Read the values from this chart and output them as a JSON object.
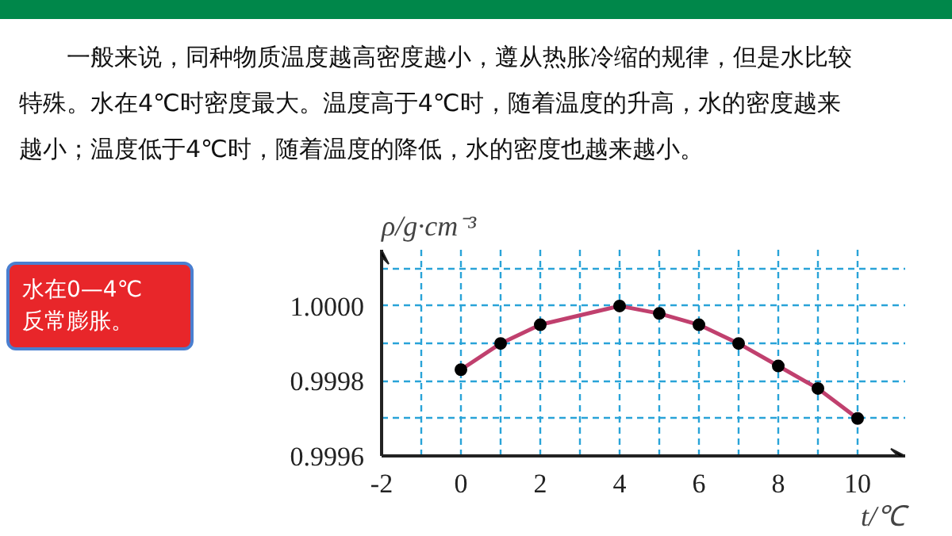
{
  "chart_data": {
    "type": "line",
    "title": "一般来说，同种物质温度越高密度越小，遵从热胀冷缩的规律，但是水比较特殊。水在4℃时密度最大。温度高于4℃时，随着温度的升高，水的密度越来越小；温度低于4℃时，随着温度的降低，水的密度也越来越小。",
    "annotations": [
      "水在0—4℃\n反常膨胀。"
    ],
    "xlabel": "t/℃",
    "ylabel": "ρ/g·cm⁻³",
    "x": [
      0,
      1,
      2,
      4,
      5,
      6,
      7,
      8,
      9,
      10
    ],
    "series": [
      {
        "color": "#c0406e",
        "values": [
          0.99983,
          0.9999,
          0.99995,
          1.0,
          0.99998,
          0.99995,
          0.9999,
          0.99984,
          0.99978,
          0.9997
        ]
      }
    ],
    "marker": "circle",
    "line_style": "solid",
    "grid": true,
    "xlim": [
      -2,
      11.2
    ],
    "ylim": [
      0.9996,
      1.00015
    ],
    "xticks": [
      -2,
      {
        "value": -1,
        "label": null
      },
      0,
      {
        "value": 1,
        "label": null
      },
      2,
      {
        "value": 3,
        "label": null
      },
      4,
      {
        "value": 5,
        "label": null
      },
      6,
      {
        "value": 7,
        "label": null
      },
      8,
      {
        "value": 9,
        "label": null
      },
      10
    ],
    "yticks": [
      0.9996,
      {
        "value": 0.9997,
        "label": null
      },
      0.9998,
      {
        "value": 0.9999,
        "label": null
      },
      {
        "value": 1.0,
        "label": "1.0000"
      },
      {
        "value": 1.0001,
        "label": null
      }
    ]
  }
}
